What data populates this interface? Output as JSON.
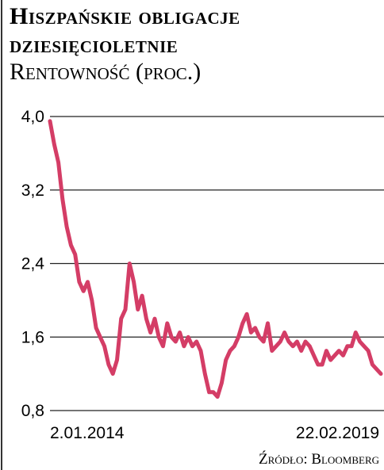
{
  "chart_data": {
    "type": "line",
    "title": "Hiszpańskie obligacje dziesięcioletnie",
    "subtitle": "Rentowność (proc.)",
    "source": "Źródło: Bloomberg",
    "categories": [
      "2.01.2014",
      null,
      null,
      null,
      null,
      null,
      null,
      null,
      null,
      null,
      null,
      null,
      null,
      null,
      null,
      null,
      null,
      null,
      null,
      null,
      null,
      null,
      null,
      null,
      null,
      null,
      null,
      null,
      null,
      null,
      null,
      null,
      null,
      null,
      null,
      null,
      null,
      null,
      null,
      null,
      null,
      null,
      null,
      null,
      null,
      null,
      null,
      null,
      null,
      null,
      null,
      null,
      null,
      null,
      null,
      null,
      null,
      null,
      null,
      null,
      null,
      null,
      null,
      null,
      null,
      null,
      null,
      null,
      null,
      null,
      null,
      null,
      null,
      null,
      null,
      null,
      null,
      null,
      null,
      "22.02.2019"
    ],
    "values": [
      3.95,
      3.7,
      3.5,
      3.1,
      2.8,
      2.6,
      2.5,
      2.2,
      2.1,
      2.2,
      2.0,
      1.7,
      1.6,
      1.5,
      1.3,
      1.2,
      1.35,
      1.8,
      1.9,
      2.4,
      2.2,
      1.9,
      2.05,
      1.8,
      1.65,
      1.8,
      1.6,
      1.5,
      1.75,
      1.6,
      1.55,
      1.65,
      1.5,
      1.6,
      1.5,
      1.55,
      1.45,
      1.2,
      1.0,
      1.0,
      0.95,
      1.1,
      1.35,
      1.45,
      1.5,
      1.6,
      1.75,
      1.85,
      1.65,
      1.7,
      1.6,
      1.55,
      1.75,
      1.45,
      1.5,
      1.55,
      1.65,
      1.55,
      1.5,
      1.55,
      1.45,
      1.55,
      1.5,
      1.4,
      1.3,
      1.3,
      1.45,
      1.35,
      1.4,
      1.45,
      1.4,
      1.5,
      1.5,
      1.65,
      1.55,
      1.5,
      1.45,
      1.3,
      1.25,
      1.2
    ],
    "color": "#d43d66",
    "ylim": [
      0.8,
      4.0
    ],
    "yticks": [
      {
        "value": 0.8,
        "label": "0,8"
      },
      {
        "value": 1.6,
        "label": "1,6"
      },
      {
        "value": 2.4,
        "label": "2,4"
      },
      {
        "value": 3.2,
        "label": "3,2"
      },
      {
        "value": 4.0,
        "label": "4,0"
      }
    ],
    "grid": true
  }
}
